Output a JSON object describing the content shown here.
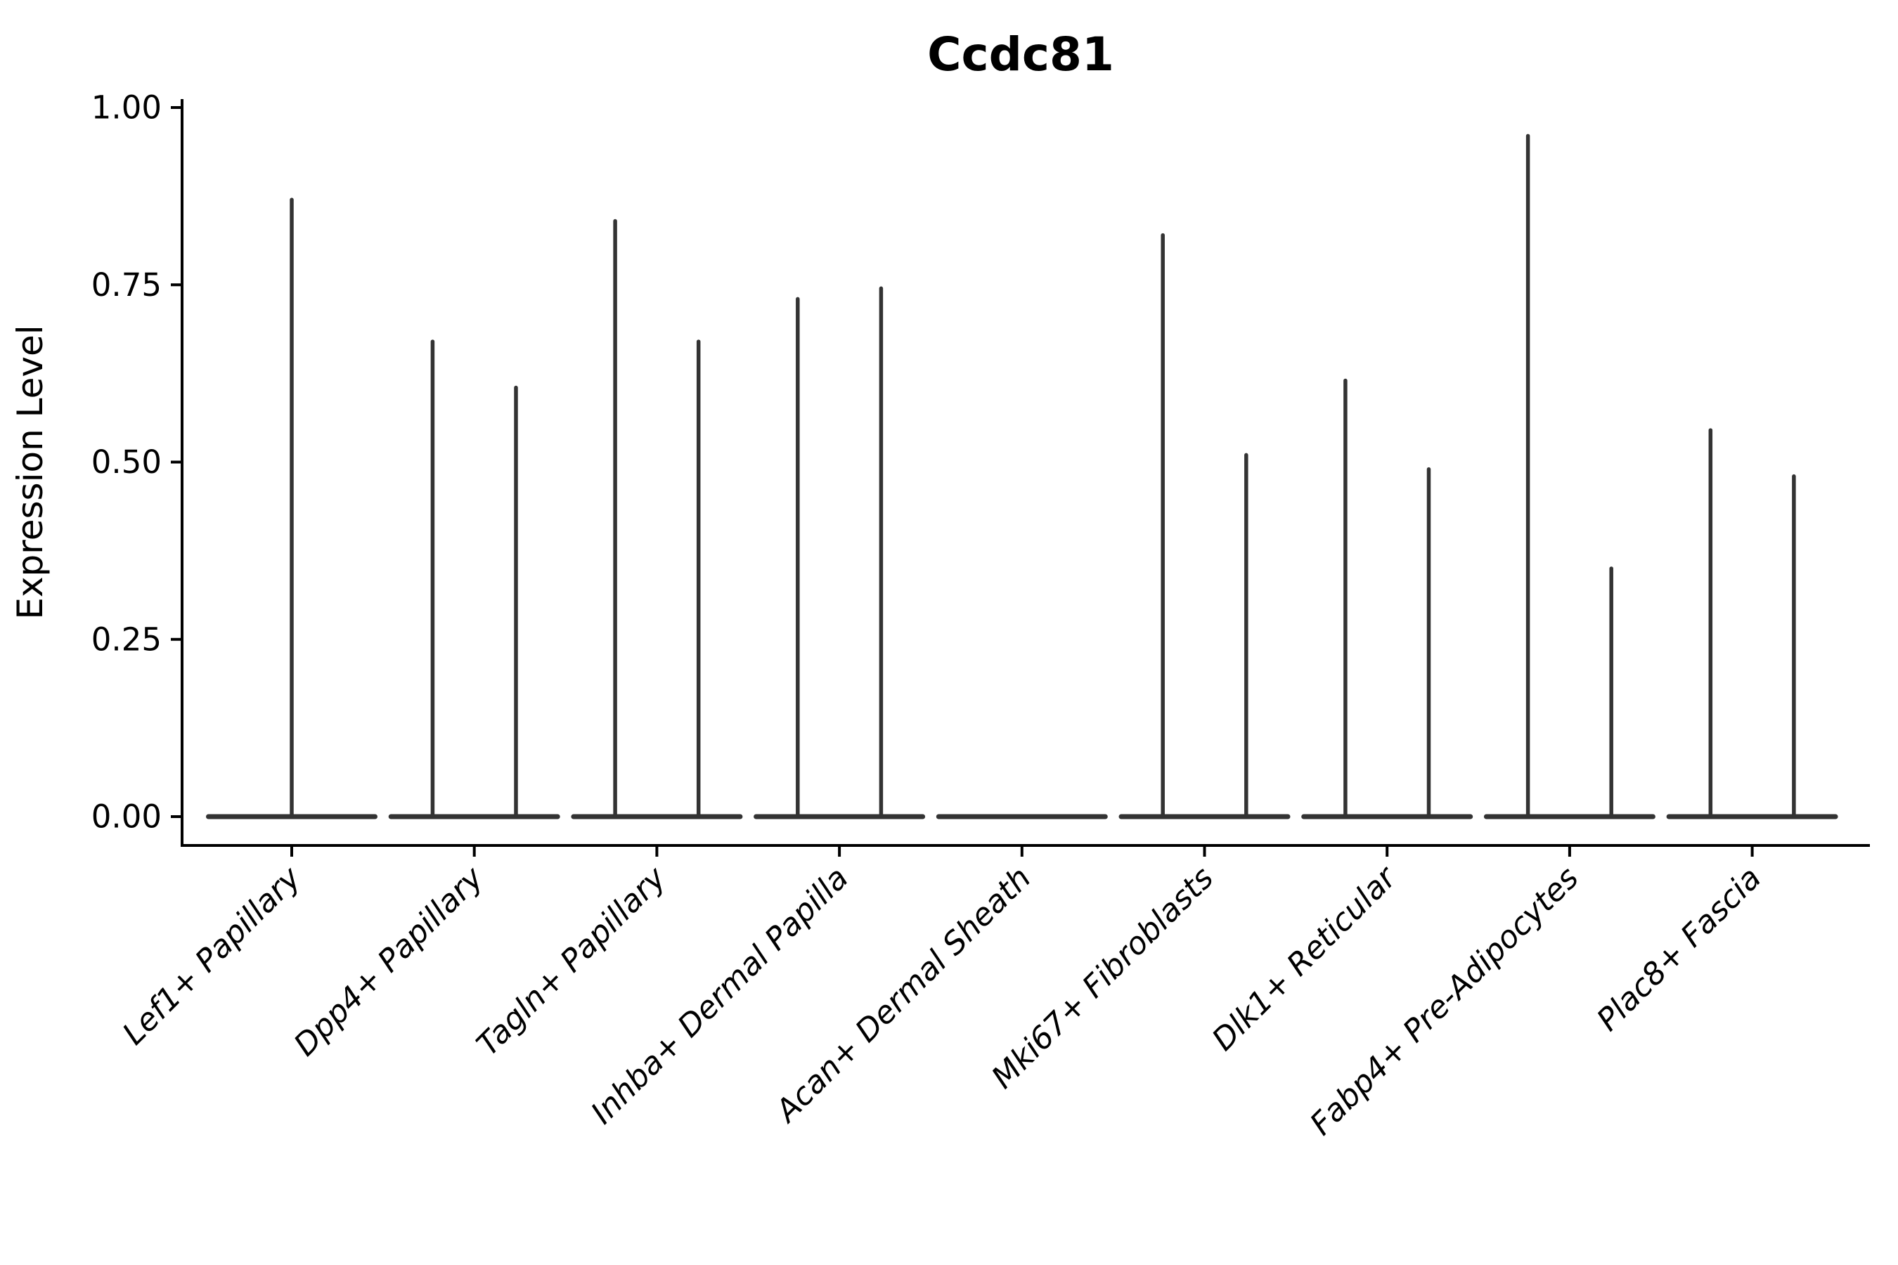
{
  "figure": {
    "background": "#ffffff"
  },
  "chart_data": {
    "type": "violin",
    "title": "Ccdc81",
    "xlabel": "",
    "ylabel": "Expression Level",
    "ylim": [
      0.0,
      1.0
    ],
    "grid": false,
    "legend": null,
    "axis_color": "#000000",
    "violin_color": "#333333",
    "y_ticks": [
      {
        "value": 1.0,
        "label": "1.00"
      },
      {
        "value": 0.75,
        "label": "0.75"
      },
      {
        "value": 0.5,
        "label": "0.50"
      },
      {
        "value": 0.25,
        "label": "0.25"
      },
      {
        "value": 0.0,
        "label": "0.00"
      }
    ],
    "categories": [
      {
        "label": "Lef1+ Papillary",
        "baseline_value": 0.0,
        "spikes": [
          0.87
        ]
      },
      {
        "label": "Dpp4+ Papillary",
        "baseline_value": 0.0,
        "spikes": [
          0.67,
          0.605
        ]
      },
      {
        "label": "Tagln+ Papillary",
        "baseline_value": 0.0,
        "spikes": [
          0.84,
          0.67
        ]
      },
      {
        "label": "Inhba+ Dermal Papilla",
        "baseline_value": 0.0,
        "spikes": [
          0.73,
          0.745
        ]
      },
      {
        "label": "Acan+ Dermal Sheath",
        "baseline_value": 0.0,
        "spikes": []
      },
      {
        "label": "Mki67+ Fibroblasts",
        "baseline_value": 0.0,
        "spikes": [
          0.82,
          0.51
        ]
      },
      {
        "label": "Dlk1+ Reticular",
        "baseline_value": 0.0,
        "spikes": [
          0.615,
          0.49
        ]
      },
      {
        "label": "Fabp4+ Pre-Adipocytes",
        "baseline_value": 0.0,
        "spikes": [
          0.96,
          0.35
        ]
      },
      {
        "label": "Plac8+ Fascia",
        "baseline_value": 0.0,
        "spikes": [
          0.545,
          0.48
        ]
      }
    ]
  }
}
